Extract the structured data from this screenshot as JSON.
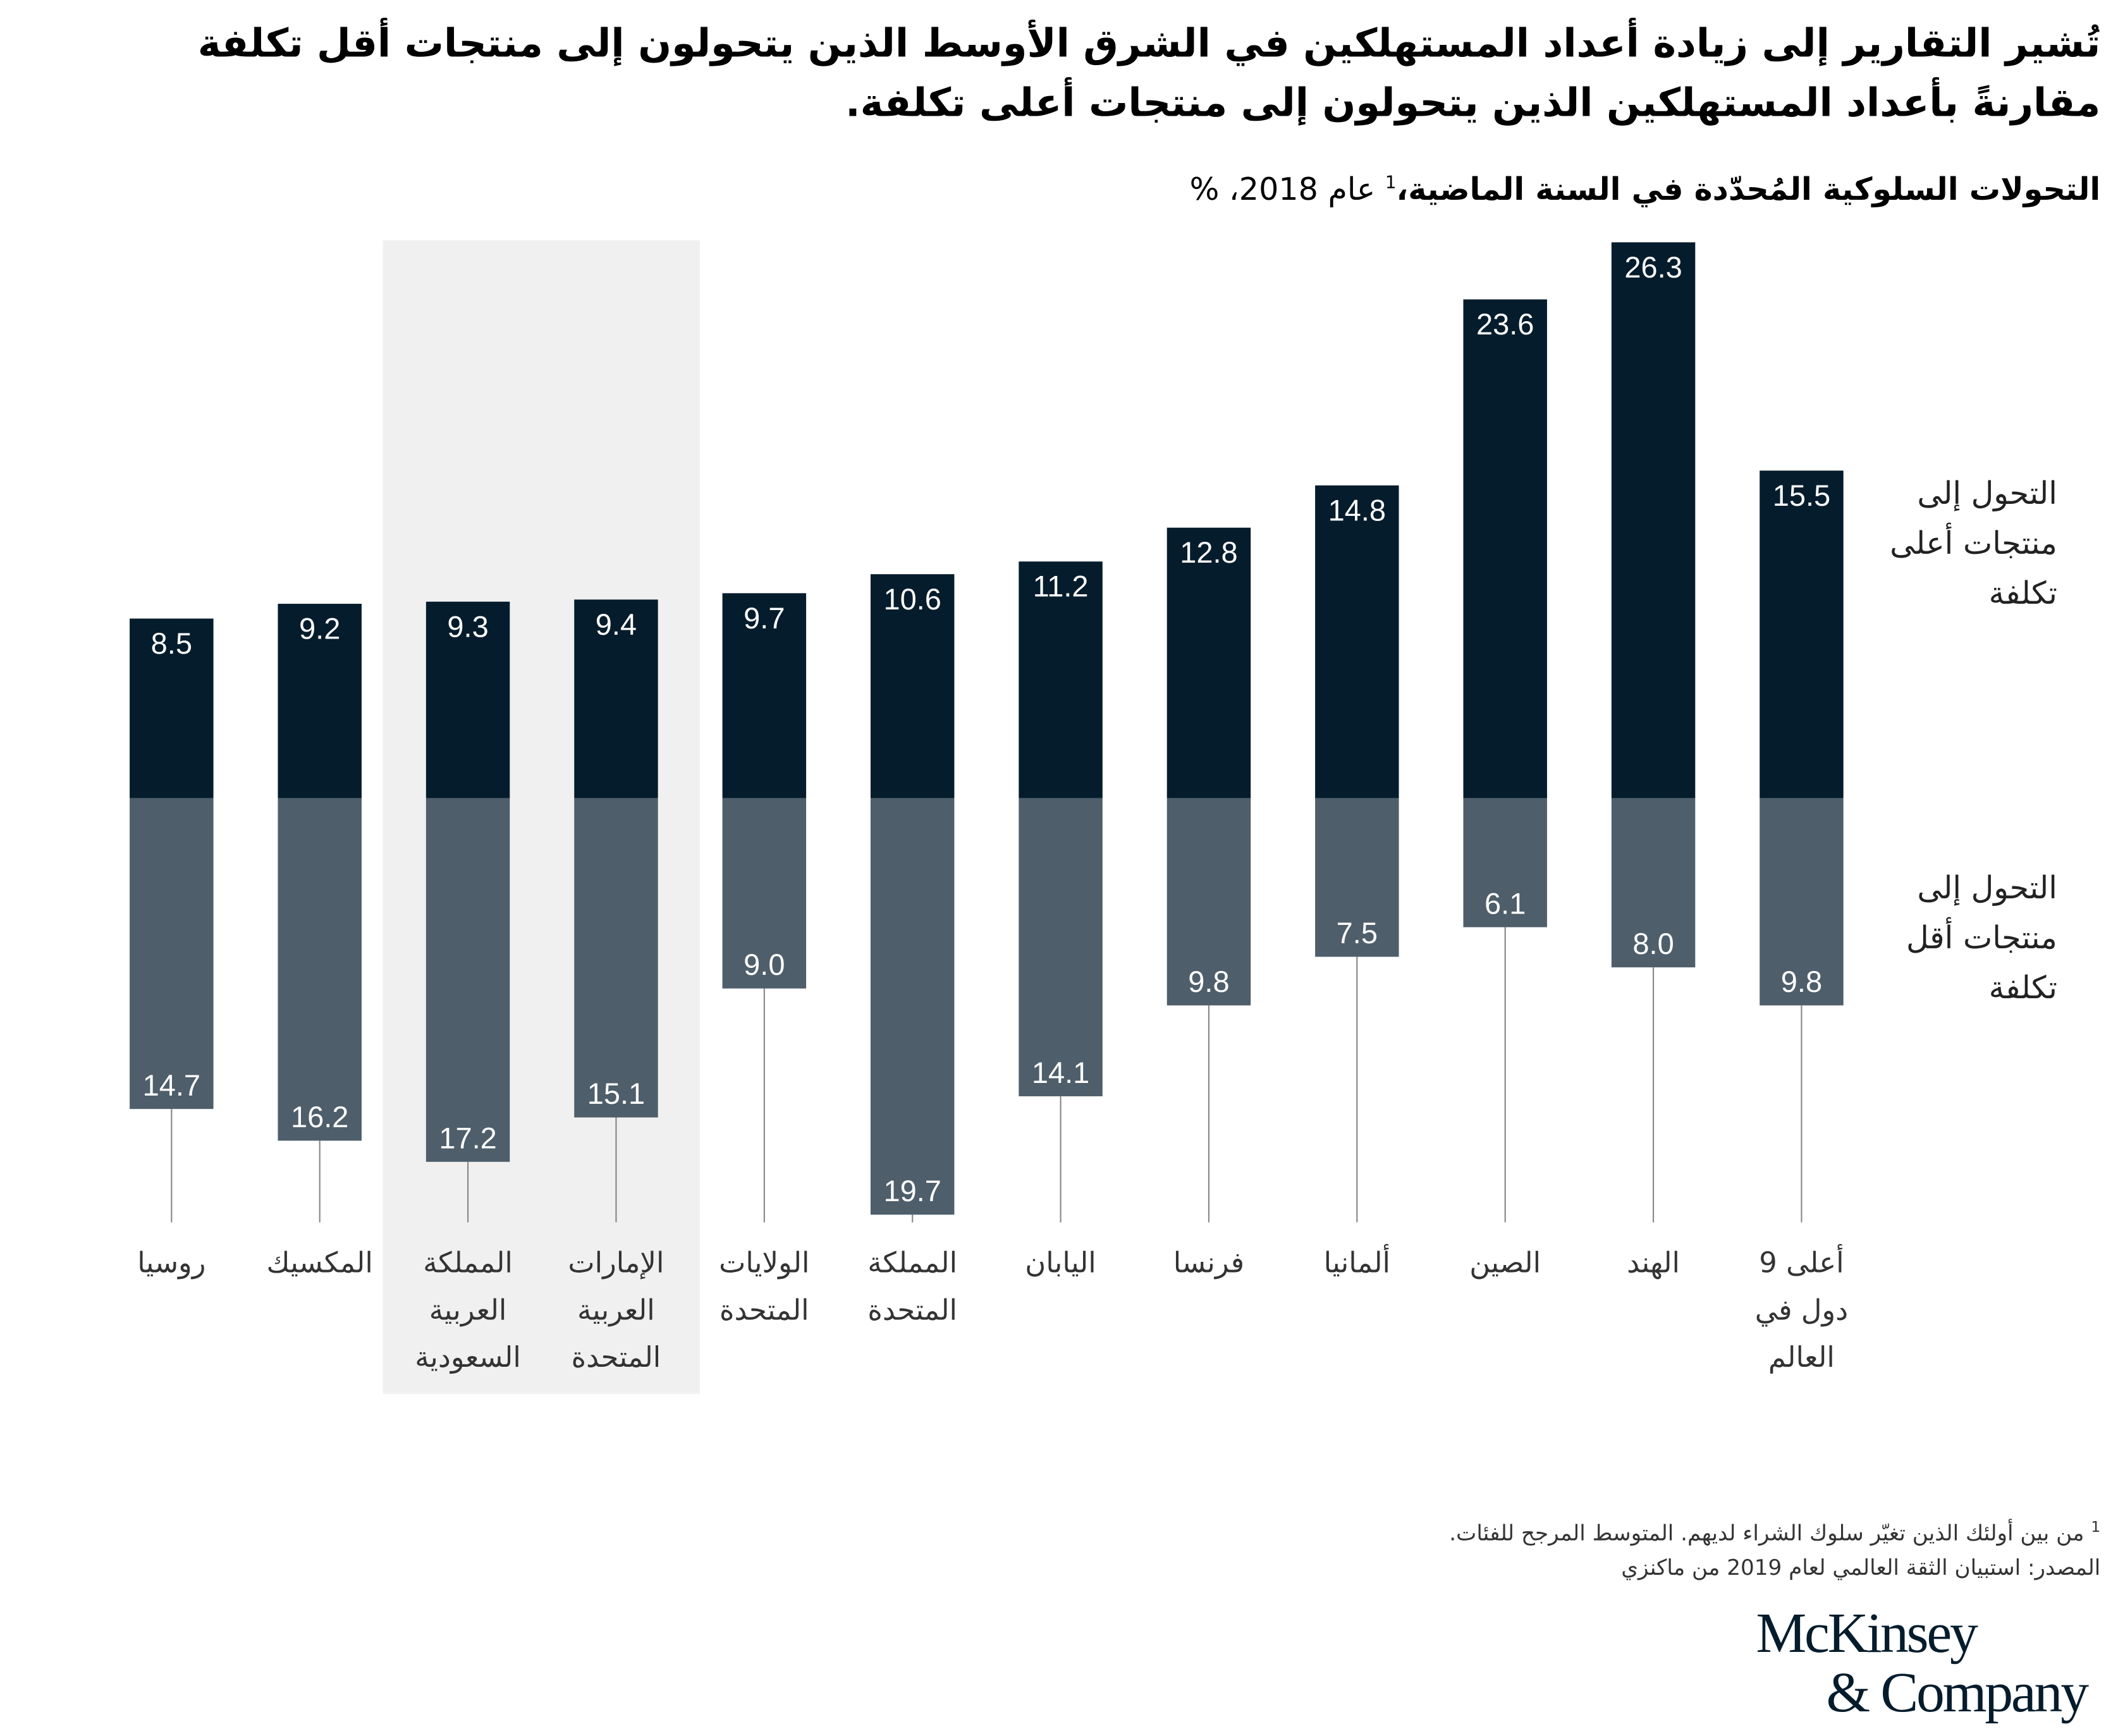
{
  "title": "تُشير التقارير إلى زيادة أعداد المستهلكين في الشرق الأوسط الذين يتحولون إلى منتجات أقل تكلفة مقارنةً بأعداد المستهلكين الذين يتحولون إلى منتجات أعلى تكلفة.",
  "footnotes": {
    "note1_marker": "1",
    "note1": "من بين أولئك الذين تغيّر سلوك الشراء لديهم. المتوسط المرجح للفئات.",
    "source": "المصدر: استبيان الثقة العالمي لعام 2019 من ماكنزي"
  },
  "logo": [
    "McKinsey",
    "& Company"
  ],
  "chart_data": {
    "type": "bar",
    "stacked": "diverging",
    "title": "التحولات السلوكية المُحدّدة في السنة الماضية،",
    "title_marker": "1",
    "title_rest": " عام 2018، %",
    "categories": [
      "روسيا",
      "المكسيك",
      "المملكة العربية السعودية",
      "الإمارات العربية المتحدة",
      "الولايات المتحدة",
      "المملكة المتحدة",
      "اليابان",
      "فرنسا",
      "ألمانيا",
      "الصين",
      "الهند",
      "أعلى 9 دول في العالم"
    ],
    "category_lines": [
      [
        "روسيا"
      ],
      [
        "المكسيك"
      ],
      [
        "المملكة",
        "العربية",
        "السعودية"
      ],
      [
        "الإمارات",
        "العربية",
        "المتحدة"
      ],
      [
        "الولايات",
        "المتحدة"
      ],
      [
        "المملكة",
        "المتحدة"
      ],
      [
        "اليابان"
      ],
      [
        "فرنسا"
      ],
      [
        "ألمانيا"
      ],
      [
        "الصين"
      ],
      [
        "الهند"
      ],
      [
        "أعلى 9",
        "دول في",
        "العالم"
      ]
    ],
    "highlighted": [
      "المملكة العربية السعودية",
      "الإمارات العربية المتحدة"
    ],
    "series": [
      {
        "name": "التحول إلى منتجات أعلى تكلفة",
        "direction": "up",
        "color": "#051c2c",
        "values": [
          8.5,
          9.2,
          9.3,
          9.4,
          9.7,
          10.6,
          11.2,
          12.8,
          14.8,
          23.6,
          26.3,
          15.5
        ]
      },
      {
        "name": "التحول إلى منتجات أقل تكلفة",
        "direction": "down",
        "color": "#4e5e6a",
        "values": [
          14.7,
          16.2,
          17.2,
          15.1,
          9.0,
          19.7,
          14.1,
          9.8,
          7.5,
          6.1,
          8.0,
          9.8
        ]
      }
    ],
    "legend_lines": [
      [
        "التحول إلى",
        "منتجات أعلى",
        "تكلفة"
      ],
      [
        "التحول إلى",
        "منتجات أقل",
        "تكلفة"
      ]
    ],
    "highlight_color": "#f0f0f0",
    "grid": false
  }
}
